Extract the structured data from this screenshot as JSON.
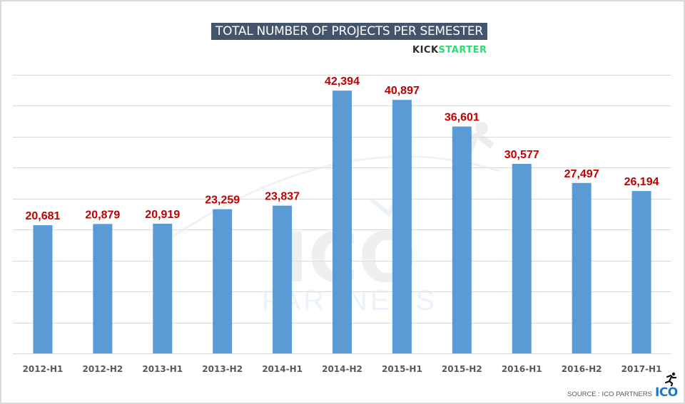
{
  "header": {
    "title": "TOTAL NUMBER OF PROJECTS PER SEMESTER",
    "brand_part1": "KICK",
    "brand_part2": "STARTER"
  },
  "footer": {
    "source": "SOURCE : ICO PARTNERS",
    "logo_text": "ICO"
  },
  "watermark": {
    "logo_text": "ICO",
    "sub_text": "PARTNERS"
  },
  "colors": {
    "bar": "#5b9bd5",
    "data_label": "#c00000",
    "title_bg": "#44546a",
    "grid": "#d9d9d9",
    "axis_label": "#595959"
  },
  "chart_data": {
    "type": "bar",
    "title": "TOTAL NUMBER OF PROJECTS PER SEMESTER",
    "xlabel": "",
    "ylabel": "",
    "categories": [
      "2012-H1",
      "2012-H2",
      "2013-H1",
      "2013-H2",
      "2014-H1",
      "2014-H2",
      "2015-H1",
      "2015-H2",
      "2016-H1",
      "2016-H2",
      "2017-H1"
    ],
    "values": [
      20681,
      20879,
      20919,
      23259,
      23837,
      42394,
      40897,
      36601,
      30577,
      27497,
      26194
    ],
    "data_labels": [
      "20,681",
      "20,879",
      "20,919",
      "23,259",
      "23,837",
      "42,394",
      "40,897",
      "36,601",
      "30,577",
      "27,497",
      "26,194"
    ],
    "ylim": [
      0,
      45000
    ],
    "ytick_step": 5000,
    "grid": true,
    "legend": "none"
  }
}
